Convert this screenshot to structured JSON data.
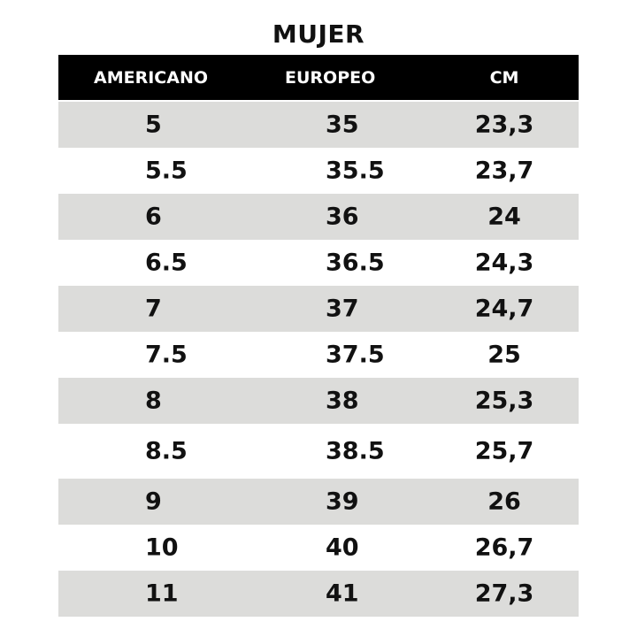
{
  "title": "MUJER",
  "chart_data": {
    "type": "table",
    "title": "MUJER",
    "columns": [
      "AMERICANO",
      "EUROPEO",
      "CM"
    ],
    "rows": [
      [
        "5",
        "35",
        "23,3"
      ],
      [
        "5.5",
        "35.5",
        "23,7"
      ],
      [
        "6",
        "36",
        "24"
      ],
      [
        "6.5",
        "36.5",
        "24,3"
      ],
      [
        "7",
        "37",
        "24,7"
      ],
      [
        "7.5",
        "37.5",
        "25"
      ],
      [
        "8",
        "38",
        "25,3"
      ],
      [
        "8.5",
        "38.5",
        "25,7"
      ],
      [
        "9",
        "39",
        "26"
      ],
      [
        "10",
        "40",
        "26,7"
      ],
      [
        "11",
        "41",
        "27,3"
      ]
    ],
    "colors": {
      "header_bg": "#000000",
      "header_text": "#ffffff",
      "stripe": "#dcdcda"
    }
  }
}
